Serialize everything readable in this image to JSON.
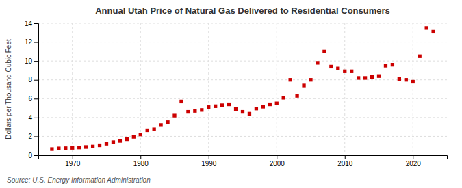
{
  "chart_data": {
    "type": "scatter",
    "title": "Annual Utah Price of Natural Gas Delivered to Residential Consumers",
    "ylabel": "Dollars per Thousand Cubic Feet",
    "annotations": [
      "Source: U.S. Energy Information Administration"
    ],
    "color": "#cc0000",
    "marker": "square",
    "grid": true,
    "xlim": [
      1965,
      2025
    ],
    "xticks": [
      1970,
      1980,
      1990,
      2000,
      2010,
      2020
    ],
    "ylim": [
      0,
      14
    ],
    "yticks": [
      0,
      2,
      4,
      6,
      8,
      10,
      12,
      14
    ],
    "x": [
      1967,
      1968,
      1969,
      1970,
      1971,
      1972,
      1973,
      1974,
      1975,
      1976,
      1977,
      1978,
      1979,
      1980,
      1981,
      1982,
      1983,
      1984,
      1985,
      1986,
      1987,
      1988,
      1989,
      1990,
      1991,
      1992,
      1993,
      1994,
      1995,
      1996,
      1997,
      1998,
      1999,
      2000,
      2001,
      2002,
      2003,
      2004,
      2005,
      2006,
      2007,
      2008,
      2009,
      2010,
      2011,
      2012,
      2013,
      2014,
      2015,
      2016,
      2017,
      2018,
      2019,
      2020,
      2021,
      2022,
      2023
    ],
    "values": [
      0.65,
      0.72,
      0.74,
      0.78,
      0.82,
      0.87,
      0.92,
      1.05,
      1.22,
      1.38,
      1.52,
      1.7,
      1.95,
      2.2,
      2.65,
      2.75,
      3.2,
      3.5,
      4.2,
      5.7,
      4.6,
      4.7,
      4.8,
      5.1,
      5.2,
      5.3,
      5.4,
      4.9,
      4.6,
      4.4,
      4.95,
      5.15,
      5.4,
      5.5,
      6.1,
      8.0,
      6.3,
      7.4,
      8.0,
      9.8,
      11.0,
      9.4,
      9.2,
      8.9,
      8.9,
      8.2,
      8.2,
      8.3,
      8.4,
      9.5,
      9.6,
      8.1,
      8.0,
      7.8,
      10.5,
      13.5,
      13.1
    ]
  }
}
